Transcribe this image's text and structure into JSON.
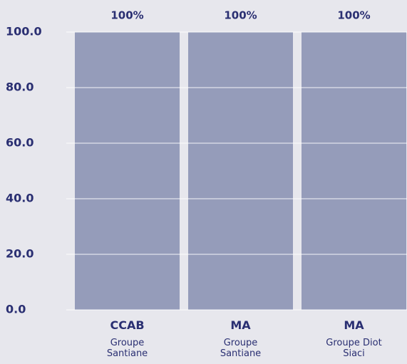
{
  "chart_data": {
    "type": "bar",
    "categories": [
      "CCAB",
      "MA",
      "MA"
    ],
    "groups": [
      "Groupe Santiane",
      "Groupe Santiane",
      "Groupe Diot Siaci"
    ],
    "values": [
      100,
      100,
      100
    ],
    "value_labels": [
      "100%",
      "100%",
      "100%"
    ],
    "color": "#959cba",
    "ylim": [
      0,
      100
    ],
    "yticks": [
      {
        "value": 0,
        "label": "0.0"
      },
      {
        "value": 20,
        "label": "20.0"
      },
      {
        "value": 40,
        "label": "40.0"
      },
      {
        "value": 60,
        "label": "60.0"
      },
      {
        "value": 80,
        "label": "80.0"
      },
      {
        "value": 100,
        "label": "100.0"
      }
    ],
    "grid": true
  }
}
